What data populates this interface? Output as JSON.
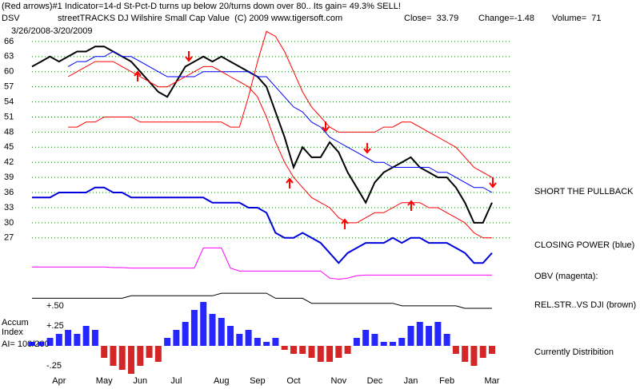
{
  "chart_data": {
    "type": "line",
    "title": "(Red arrows)#1 Indicator=14-d St-Pct-D turns up below 20/turns down over 80.. Its gain= 49.3% SELL!",
    "ticker": "DSV",
    "subtitle": "streetTRACKS DJ Wilshire Small Cap Value  (C) 2009 www.tigersoft.com",
    "close_label": "Close=  33.79",
    "change_label": "Change=-1.48",
    "volume_label": "Volume=  71",
    "date_range": "3/26/2008-3/20/2009",
    "annotation": "SHORT THE PULLBACK",
    "categories": [
      null,
      null,
      null,
      "Apr",
      null,
      null,
      null,
      null,
      "May",
      null,
      null,
      null,
      "Jun",
      null,
      null,
      null,
      "Jul",
      null,
      null,
      null,
      null,
      "Aug",
      null,
      null,
      null,
      "Sep",
      null,
      null,
      null,
      "Oct",
      null,
      null,
      null,
      null,
      "Nov",
      null,
      null,
      null,
      "Dec",
      null,
      null,
      null,
      "Jan",
      null,
      null,
      null,
      "Feb",
      null,
      null,
      null,
      null,
      "Mar"
    ],
    "ylim": [
      0,
      69
    ],
    "yticks": [
      66,
      63,
      60,
      57,
      54,
      51,
      48,
      45,
      42,
      39,
      36,
      33,
      30,
      27
    ],
    "grid": true,
    "grid_color": "#008000",
    "series": [
      {
        "color": "#000000",
        "values": [
          61,
          62,
          63,
          62,
          63,
          64,
          64,
          65,
          65,
          64,
          63,
          62,
          60,
          58,
          56,
          55,
          58,
          61,
          62,
          63,
          62,
          63,
          62,
          61,
          60,
          59,
          57,
          52,
          47,
          41,
          45,
          43,
          43,
          46,
          44,
          40,
          37,
          34,
          38,
          40,
          41,
          42,
          43,
          41,
          40,
          39,
          39,
          37,
          34,
          30,
          30,
          34
        ]
      },
      {
        "color": "#0000ff",
        "values": [
          null,
          null,
          null,
          null,
          61,
          62,
          62,
          63,
          63,
          64,
          63,
          63,
          62,
          61,
          60,
          59,
          59,
          59,
          59,
          60,
          60,
          60,
          60,
          60,
          60,
          59,
          59,
          57,
          55,
          53,
          52,
          50,
          49,
          47,
          46,
          45,
          44,
          43,
          42,
          42,
          41,
          41,
          41,
          41,
          41,
          40,
          40,
          39,
          38,
          37,
          37,
          36
        ]
      },
      {
        "color": "#ff0000",
        "values": [
          null,
          null,
          null,
          null,
          49,
          49,
          50,
          50,
          51,
          51,
          51,
          51,
          50,
          50,
          50,
          50,
          50,
          50,
          50,
          50,
          50,
          50,
          49,
          49,
          55,
          62,
          68,
          67,
          64,
          60,
          56,
          53,
          51,
          49,
          48,
          48,
          48,
          48,
          48,
          49,
          49,
          50,
          50,
          49,
          48,
          47,
          46,
          45,
          43,
          41,
          40,
          39
        ]
      },
      {
        "color": "#ff0000",
        "values": [
          null,
          null,
          null,
          null,
          59,
          60,
          61,
          62,
          62,
          62,
          61,
          60,
          59,
          58,
          57,
          57,
          58,
          59,
          60,
          61,
          61,
          60,
          59,
          58,
          57,
          55,
          51,
          46,
          42,
          39,
          37,
          35,
          34,
          33,
          31,
          30,
          30,
          31,
          32,
          32,
          33,
          34,
          34,
          34,
          33,
          33,
          32,
          31,
          30,
          28,
          27,
          27
        ]
      },
      {
        "name": "CLOSING POWER (blue)",
        "color": "#0000dd",
        "values": [
          35,
          35,
          35,
          36,
          36,
          36,
          36,
          37,
          37,
          36,
          36,
          35,
          35,
          35,
          35,
          35,
          35,
          35,
          35,
          35,
          34,
          34,
          34,
          34,
          33,
          33,
          32,
          28,
          27,
          27,
          28,
          27,
          26,
          24,
          22,
          24,
          25,
          26,
          26,
          26,
          27,
          26,
          27,
          27,
          26,
          26,
          26,
          25,
          24,
          22,
          22,
          24
        ]
      },
      {
        "name": "OBV (magenta):",
        "color": "#ff00ff",
        "values": [
          21.2,
          21.2,
          21.2,
          21.2,
          21.2,
          21.2,
          21.2,
          21.2,
          21.2,
          21.1,
          21.1,
          21,
          21,
          21,
          21,
          21,
          21,
          21,
          21,
          25,
          25,
          25,
          21,
          20.4,
          20.4,
          20.4,
          20.4,
          20.4,
          20.4,
          20.4,
          20.4,
          20.4,
          20.4,
          19,
          18.8,
          19,
          19.5,
          19.6,
          19.6,
          19.6,
          19.6,
          19.6,
          19.6,
          19.6,
          19.6,
          19.6,
          19.6,
          19.6,
          19.6,
          19.6,
          19.6,
          19.6
        ]
      },
      {
        "name": "REL.STR..VS DJI (brown)",
        "color": "#000000",
        "values": [
          15,
          15,
          15,
          15,
          15,
          15,
          15,
          15,
          15,
          15,
          15,
          15.5,
          15.5,
          15.5,
          15.5,
          15.5,
          15.5,
          15.5,
          15.5,
          15.5,
          15.5,
          16,
          16,
          16,
          16,
          16,
          16,
          15,
          15,
          15,
          15,
          14,
          14,
          14,
          14,
          14,
          14,
          14,
          14,
          14,
          14,
          13.5,
          13.5,
          13.5,
          13.5,
          13.5,
          13.5,
          13.5,
          13,
          13,
          13,
          13
        ]
      }
    ],
    "accum": {
      "title_lines": [
        "Accum",
        "Index",
        "AI= 100/200"
      ],
      "annotation": "Currently Distribition",
      "ylim": [
        -0.35,
        0.55
      ],
      "yticks": [
        {
          "value": 0.5,
          "label": "+.50"
        },
        {
          "value": 0.25,
          "label": "+.25"
        },
        {
          "value": -0.25,
          "label": "-.25"
        }
      ],
      "positive_color": "#0000ff",
      "negative_color": "#cc0000",
      "values": [
        0.05,
        0.05,
        0.1,
        0.15,
        0.2,
        0.15,
        0.25,
        0.2,
        -0.15,
        -0.25,
        -0.3,
        -0.35,
        -0.25,
        -0.15,
        -0.2,
        0.1,
        0.2,
        0.3,
        0.45,
        0.55,
        0.4,
        0.35,
        0.25,
        0.15,
        0.2,
        0.1,
        0.05,
        0.1,
        -0.05,
        -0.1,
        -0.1,
        -0.15,
        -0.2,
        -0.2,
        -0.15,
        -0.1,
        0.1,
        0.2,
        0.15,
        0.05,
        0.05,
        0.1,
        0.25,
        0.3,
        0.25,
        0.3,
        0.15,
        -0.1,
        -0.2,
        -0.25,
        -0.15,
        -0.1
      ]
    }
  }
}
